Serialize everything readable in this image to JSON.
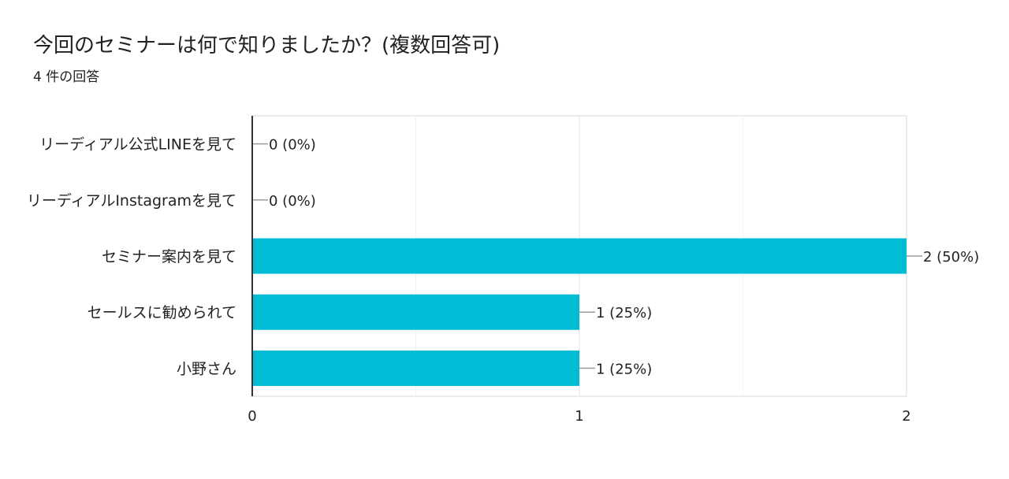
{
  "header": {
    "question": "今回のセミナーは何で知りましたか？(複数回答可)",
    "response_count": "4 件の回答"
  },
  "chart_data": {
    "type": "bar",
    "orientation": "horizontal",
    "categories": [
      "リーディアル公式LINEを見て",
      "リーディアルInstagramを見て",
      "セミナー案内を見て",
      "セールスに勧められて",
      "小野さん"
    ],
    "values": [
      0,
      0,
      2,
      1,
      1
    ],
    "value_labels": [
      "0 (0%)",
      "0 (0%)",
      "2 (50%)",
      "1 (25%)",
      "1 (25%)"
    ],
    "xlim": [
      0,
      2
    ],
    "x_ticks": [
      "0",
      "1",
      "2"
    ],
    "grid": true,
    "bar_color": "#00bcd4"
  }
}
